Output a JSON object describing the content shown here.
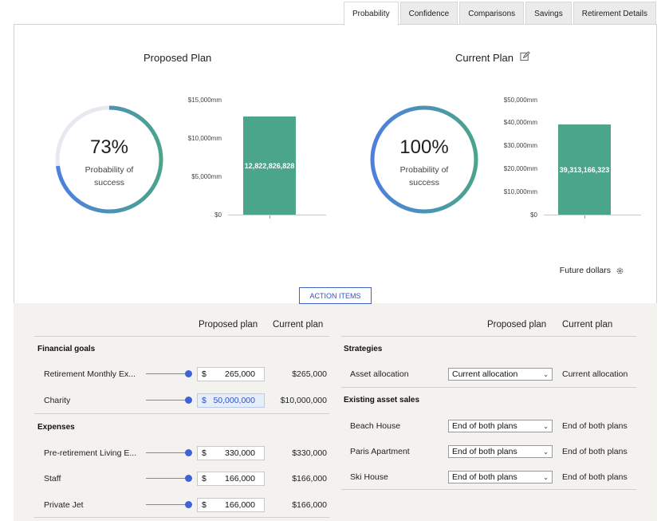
{
  "tabs": [
    {
      "label": "Probability",
      "active": true
    },
    {
      "label": "Confidence",
      "active": false
    },
    {
      "label": "Comparisons",
      "active": false
    },
    {
      "label": "Savings",
      "active": false
    },
    {
      "label": "Retirement Details",
      "active": false
    }
  ],
  "proposed": {
    "title": "Proposed Plan",
    "probability_pct": 73,
    "probability_text": "73%",
    "probability_label_line1": "Probability of",
    "probability_label_line2": "success",
    "bar_label": "12,822,826,828",
    "bar_value_mm": 12822.826828,
    "ticks": [
      "$15,000mm",
      "$10,000mm",
      "$5,000mm",
      "$0"
    ]
  },
  "current": {
    "title": "Current Plan",
    "probability_pct": 100,
    "probability_text": "100%",
    "probability_label_line1": "Probability of",
    "probability_label_line2": "success",
    "bar_label": "39,313,166,323",
    "bar_value_mm": 39313.166323,
    "ticks": [
      "$50,000mm",
      "$40,000mm",
      "$30,000mm",
      "$20,000mm",
      "$10,000mm",
      "$0"
    ]
  },
  "future_dollars": "Future dollars",
  "action_items": "ACTION ITEMS",
  "left_table": {
    "col_proposed": "Proposed plan",
    "col_current": "Current plan",
    "financial_goals": "Financial goals",
    "expenses": "Expenses",
    "goals": [
      {
        "label": "Retirement Monthly Ex...",
        "currency": "$",
        "proposed": "265,000",
        "current": "$265,000",
        "focused": false
      },
      {
        "label": "Charity",
        "currency": "$",
        "proposed": "50,000,000",
        "current": "$10,000,000",
        "focused": true
      }
    ],
    "expense_rows": [
      {
        "label": "Pre-retirement Living E...",
        "currency": "$",
        "proposed": "330,000",
        "current": "$330,000",
        "focused": false
      },
      {
        "label": "Staff",
        "currency": "$",
        "proposed": "166,000",
        "current": "$166,000",
        "focused": false
      },
      {
        "label": "Private Jet",
        "currency": "$",
        "proposed": "166,000",
        "current": "$166,000",
        "focused": false
      }
    ]
  },
  "right_table": {
    "col_proposed": "Proposed plan",
    "col_current": "Current plan",
    "strategies": "Strategies",
    "asset_allocation_label": "Asset allocation",
    "asset_allocation_proposed": "Current allocation",
    "asset_allocation_current": "Current allocation",
    "existing_asset_sales": "Existing asset sales",
    "sales": [
      {
        "label": "Beach House",
        "proposed": "End of both plans",
        "current": "End of both plans"
      },
      {
        "label": "Paris Apartment",
        "proposed": "End of both plans",
        "current": "End of both plans"
      },
      {
        "label": "Ski House",
        "proposed": "End of both plans",
        "current": "End of both plans"
      }
    ]
  },
  "colors": {
    "accent": "#3f63d6",
    "bar": "#4aa58a",
    "donut_track": "#e7e9f0"
  }
}
